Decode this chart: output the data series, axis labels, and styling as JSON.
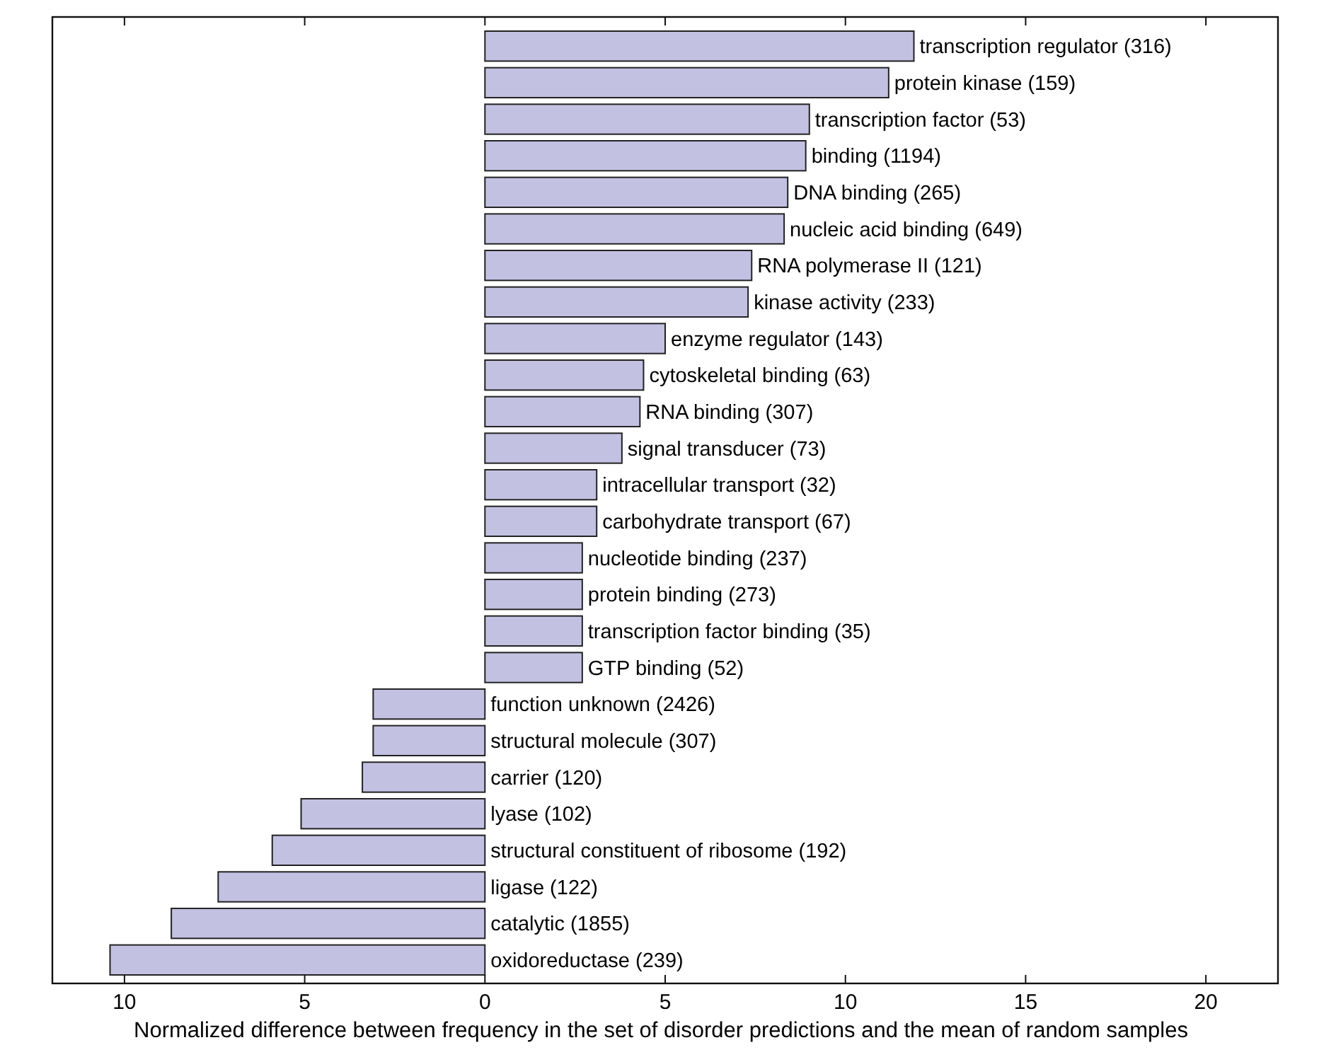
{
  "chart_data": {
    "type": "bar",
    "orientation": "horizontal",
    "xlabel": "Normalized difference between frequency in the set of disorder predictions and the mean of random samples",
    "categories": [
      "transcription regulator (316)",
      "protein kinase (159)",
      "transcription factor (53)",
      "binding (1194)",
      "DNA binding (265)",
      "nucleic acid binding (649)",
      "RNA polymerase II (121)",
      "kinase activity (233)",
      "enzyme regulator (143)",
      "cytoskeletal binding (63)",
      "RNA binding (307)",
      "signal transducer (73)",
      "intracellular transport (32)",
      "carbohydrate transport (67)",
      "nucleotide binding (237)",
      "protein binding (273)",
      "transcription factor binding (35)",
      "GTP binding (52)",
      "function unknown (2426)",
      "structural molecule (307)",
      "carrier (120)",
      "lyase (102)",
      "structural constituent of ribosome (192)",
      "ligase (122)",
      "catalytic (1855)",
      "oxidoreductase (239)"
    ],
    "values": [
      11.9,
      11.2,
      9.0,
      8.9,
      8.4,
      8.3,
      7.4,
      7.3,
      5.0,
      4.4,
      4.3,
      3.8,
      3.1,
      3.1,
      2.7,
      2.7,
      2.7,
      2.7,
      -3.1,
      -3.1,
      -3.4,
      -5.1,
      -5.9,
      -7.4,
      -8.7,
      -10.4
    ],
    "color": "#c3c1e2",
    "xlim": [
      -12,
      22
    ],
    "xticks": [
      {
        "value": -10,
        "label": "10"
      },
      {
        "value": -5,
        "label": "5"
      },
      0,
      5,
      10,
      15,
      20
    ],
    "grid": false
  }
}
